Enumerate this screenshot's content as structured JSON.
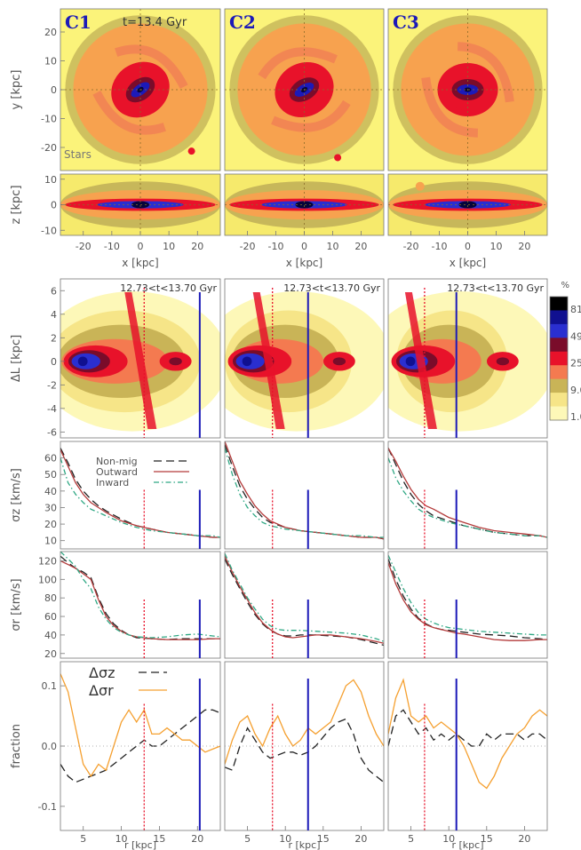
{
  "chart_data": [
    {
      "type": "heatmap",
      "name": "face-on stellar maps",
      "panels": [
        "C1",
        "C2",
        "C3"
      ],
      "annotation": "t=13.4 Gyr",
      "component_label": "Stars",
      "ylabel": "y [kpc]",
      "yticks": [
        20,
        10,
        0,
        -10,
        -20
      ],
      "ylim": [
        -28,
        28
      ],
      "colors": {
        "low": "#fbf37a",
        "mid": "#f7a24f",
        "high": "#e8122a",
        "core": "#1c1ab8"
      }
    },
    {
      "type": "heatmap",
      "name": "edge-on stellar maps",
      "ylabel": "z [kpc]",
      "yticks": [
        10,
        0,
        -10
      ],
      "ylim": [
        -12,
        12
      ],
      "xlabel": "x [kpc]",
      "xticks": [
        -20,
        -10,
        0,
        10,
        20
      ],
      "xlim": [
        -28,
        28
      ]
    },
    {
      "type": "heatmap",
      "name": "angular momentum change",
      "ylabel": "ΔL [kpc]",
      "yticks": [
        6,
        4,
        2,
        0,
        -2,
        -4,
        -6
      ],
      "ylim": [
        -6.5,
        7
      ],
      "annotation": "12.73<t<13.70 Gyr",
      "colorbar": {
        "unit": "%",
        "ticks": [
          "81",
          "49",
          "25",
          "9.0",
          "1.0"
        ]
      },
      "markers": {
        "dotted_r": [
          13.0,
          8.3,
          6.8
        ],
        "solid_r": [
          20.3,
          13.0,
          11.0
        ]
      }
    },
    {
      "type": "line",
      "name": "sigma_z profiles",
      "ylabel": "σz [km/s]",
      "yticks": [
        10,
        20,
        30,
        40,
        50,
        60
      ],
      "ylim": [
        5,
        70
      ],
      "xlim": [
        2,
        23
      ],
      "legend": [
        "Non-mig",
        "Outward",
        "Inward"
      ],
      "series_colors": {
        "Non-mig": "#222222",
        "Outward": "#b33a3a",
        "Inward": "#2fa884"
      },
      "panels": [
        {
          "x": [
            2,
            3,
            4,
            5,
            6,
            7,
            8,
            10,
            12,
            14,
            16,
            18,
            20,
            22,
            23
          ],
          "Non-mig": [
            66,
            57,
            47,
            40,
            35,
            31,
            28,
            23,
            19,
            17,
            15,
            14,
            13,
            12,
            12
          ],
          "Outward": [
            65,
            55,
            45,
            38,
            33,
            30,
            27,
            22,
            19,
            17,
            15,
            14,
            13,
            12,
            12
          ],
          "Inward": [
            60,
            45,
            38,
            33,
            29,
            27,
            25,
            21,
            18,
            16,
            15,
            14,
            13,
            13,
            12
          ]
        },
        {
          "x": [
            2,
            3,
            4,
            5,
            6,
            7,
            8,
            10,
            12,
            14,
            16,
            18,
            20,
            22,
            23
          ],
          "Non-mig": [
            68,
            55,
            43,
            35,
            29,
            24,
            21,
            18,
            16,
            15,
            14,
            13,
            12,
            12,
            11
          ],
          "Outward": [
            70,
            58,
            46,
            38,
            31,
            26,
            22,
            18,
            16,
            15,
            14,
            13,
            12,
            12,
            11
          ],
          "Inward": [
            66,
            50,
            38,
            30,
            25,
            21,
            19,
            17,
            16,
            15,
            14,
            13,
            13,
            12,
            12
          ]
        },
        {
          "x": [
            2,
            3,
            4,
            5,
            6,
            7,
            8,
            10,
            12,
            14,
            16,
            18,
            20,
            22,
            23
          ],
          "Non-mig": [
            66,
            56,
            46,
            38,
            32,
            28,
            25,
            22,
            19,
            17,
            15,
            14,
            13,
            13,
            12
          ],
          "Outward": [
            66,
            58,
            49,
            41,
            35,
            31,
            29,
            24,
            21,
            18,
            16,
            15,
            14,
            13,
            12
          ],
          "Inward": [
            60,
            48,
            40,
            34,
            29,
            26,
            24,
            21,
            19,
            17,
            15,
            14,
            13,
            13,
            12
          ]
        }
      ]
    },
    {
      "type": "line",
      "name": "sigma_r profiles",
      "ylabel": "σr [km/s]",
      "yticks": [
        20,
        40,
        60,
        80,
        100,
        120
      ],
      "ylim": [
        15,
        130
      ],
      "xlim": [
        2,
        23
      ],
      "panels": [
        {
          "x": [
            2,
            3,
            4,
            5,
            6,
            7,
            8,
            9,
            10,
            11,
            12,
            14,
            16,
            18,
            20,
            22,
            23
          ],
          "Non-mig": [
            125,
            118,
            112,
            108,
            102,
            80,
            63,
            52,
            45,
            40,
            37,
            36,
            35,
            36,
            36,
            36,
            36
          ],
          "Outward": [
            120,
            116,
            112,
            106,
            100,
            78,
            60,
            50,
            44,
            40,
            38,
            36,
            35,
            35,
            35,
            36,
            36
          ],
          "Inward": [
            130,
            122,
            114,
            100,
            90,
            70,
            57,
            48,
            43,
            40,
            38,
            37,
            38,
            40,
            41,
            39,
            38
          ]
        },
        {
          "x": [
            2,
            3,
            4,
            5,
            6,
            7,
            8,
            9,
            10,
            11,
            12,
            14,
            16,
            18,
            20,
            22,
            23
          ],
          "Non-mig": [
            122,
            105,
            90,
            75,
            62,
            52,
            45,
            41,
            39,
            39,
            40,
            40,
            39,
            38,
            35,
            31,
            29
          ],
          "Outward": [
            125,
            108,
            92,
            78,
            64,
            53,
            46,
            41,
            38,
            37,
            38,
            40,
            40,
            38,
            36,
            33,
            31
          ],
          "Inward": [
            128,
            110,
            95,
            80,
            68,
            57,
            50,
            46,
            45,
            45,
            45,
            44,
            43,
            42,
            40,
            36,
            33
          ]
        },
        {
          "x": [
            2,
            3,
            4,
            5,
            6,
            7,
            8,
            9,
            10,
            11,
            12,
            14,
            16,
            18,
            20,
            22,
            23
          ],
          "Non-mig": [
            122,
            100,
            82,
            68,
            58,
            52,
            48,
            46,
            45,
            44,
            43,
            41,
            40,
            39,
            37,
            36,
            35
          ],
          "Outward": [
            118,
            95,
            78,
            65,
            57,
            51,
            48,
            46,
            44,
            42,
            41,
            38,
            35,
            34,
            34,
            35,
            35
          ],
          "Inward": [
            126,
            108,
            90,
            75,
            64,
            57,
            53,
            50,
            48,
            47,
            46,
            44,
            43,
            42,
            41,
            40,
            40
          ]
        }
      ]
    },
    {
      "type": "line",
      "name": "fractional difference",
      "ylabel": "fraction",
      "yticks": [
        0.1,
        0.0,
        -0.1
      ],
      "ylim": [
        -0.14,
        0.14
      ],
      "xlabel": "r [kpc]",
      "xticks": [
        5,
        10,
        15,
        20
      ],
      "xlim": [
        2,
        23
      ],
      "legend": [
        "Δσz",
        "Δσr"
      ],
      "series_colors": {
        "Δσz": "#222222",
        "Δσr": "#f5a030"
      },
      "panels": [
        {
          "x": [
            2,
            3,
            4,
            5,
            6,
            7,
            8,
            9,
            10,
            11,
            12,
            13,
            14,
            15,
            16,
            17,
            18,
            19,
            20,
            21,
            22,
            23
          ],
          "Δσz": [
            -0.03,
            -0.05,
            -0.06,
            -0.055,
            -0.05,
            -0.045,
            -0.04,
            -0.03,
            -0.02,
            -0.01,
            0.0,
            0.01,
            0.0,
            0.0,
            0.01,
            0.02,
            0.03,
            0.04,
            0.05,
            0.06,
            0.06,
            0.055
          ],
          "Δσr": [
            0.12,
            0.09,
            0.03,
            -0.03,
            -0.05,
            -0.03,
            -0.04,
            0.0,
            0.04,
            0.06,
            0.04,
            0.06,
            0.02,
            0.02,
            0.03,
            0.02,
            0.01,
            0.01,
            0.0,
            -0.01,
            -0.005,
            0.0
          ]
        },
        {
          "x": [
            2,
            3,
            4,
            5,
            6,
            7,
            8,
            9,
            10,
            11,
            12,
            13,
            14,
            15,
            16,
            17,
            18,
            19,
            20,
            21,
            22,
            23
          ],
          "Δσz": [
            -0.035,
            -0.04,
            0.0,
            0.03,
            0.01,
            -0.01,
            -0.02,
            -0.015,
            -0.01,
            -0.01,
            -0.015,
            -0.01,
            0.0,
            0.015,
            0.03,
            0.04,
            0.045,
            0.02,
            -0.02,
            -0.04,
            -0.05,
            -0.06
          ],
          "Δσr": [
            -0.03,
            0.01,
            0.04,
            0.05,
            0.02,
            0.0,
            0.03,
            0.05,
            0.02,
            0.0,
            0.01,
            0.03,
            0.02,
            0.03,
            0.04,
            0.07,
            0.1,
            0.11,
            0.09,
            0.05,
            0.02,
            0.0
          ]
        },
        {
          "x": [
            2,
            3,
            4,
            5,
            6,
            7,
            8,
            9,
            10,
            11,
            12,
            13,
            14,
            15,
            16,
            17,
            18,
            19,
            20,
            21,
            22,
            23
          ],
          "Δσz": [
            0.0,
            0.05,
            0.06,
            0.04,
            0.02,
            0.03,
            0.01,
            0.02,
            0.01,
            0.02,
            0.01,
            0.0,
            0.0,
            0.02,
            0.01,
            0.02,
            0.02,
            0.02,
            0.01,
            0.02,
            0.02,
            0.01
          ],
          "Δσr": [
            0.02,
            0.08,
            0.11,
            0.05,
            0.04,
            0.05,
            0.03,
            0.04,
            0.03,
            0.02,
            0.0,
            -0.03,
            -0.06,
            -0.07,
            -0.05,
            -0.02,
            0.0,
            0.02,
            0.03,
            0.05,
            0.06,
            0.05
          ]
        }
      ]
    }
  ]
}
